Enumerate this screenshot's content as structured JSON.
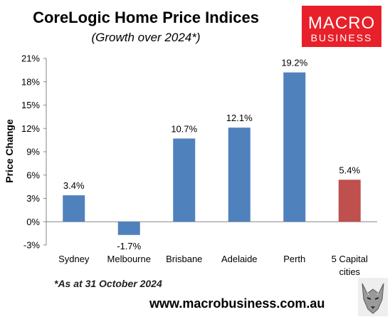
{
  "branding": {
    "logo_line1": "MACRO",
    "logo_line2": "BUSINESS",
    "logo_color": "#e8202a",
    "website": "www.macrobusiness.com.au",
    "mascot_icon": "wolf-icon"
  },
  "note": "*As at 31 October 2024",
  "chart_data": {
    "type": "bar",
    "title": "CoreLogic Home Price Indices",
    "subtitle": "(Growth over 2024*)",
    "ylabel": "Price Change",
    "xlabel": "",
    "categories": [
      [
        "Sydney"
      ],
      [
        "Melbourne"
      ],
      [
        "Brisbane"
      ],
      [
        "Adelaide"
      ],
      [
        "Perth"
      ],
      [
        "5 Capital",
        "cities"
      ]
    ],
    "values": [
      3.4,
      -1.7,
      10.7,
      12.1,
      19.2,
      5.4
    ],
    "data_labels": [
      "3.4%",
      "-1.7%",
      "10.7%",
      "12.1%",
      "19.2%",
      "5.4%"
    ],
    "colors": [
      "#4f81bd",
      "#4f81bd",
      "#4f81bd",
      "#4f81bd",
      "#4f81bd",
      "#c0504d"
    ],
    "ylim": [
      -3,
      21
    ],
    "yticks": [
      -3,
      0,
      3,
      6,
      9,
      12,
      15,
      18,
      21
    ],
    "ytick_labels": [
      "-3%",
      "0%",
      "3%",
      "6%",
      "9%",
      "12%",
      "15%",
      "18%",
      "21%"
    ],
    "grid": false,
    "legend": "none"
  }
}
